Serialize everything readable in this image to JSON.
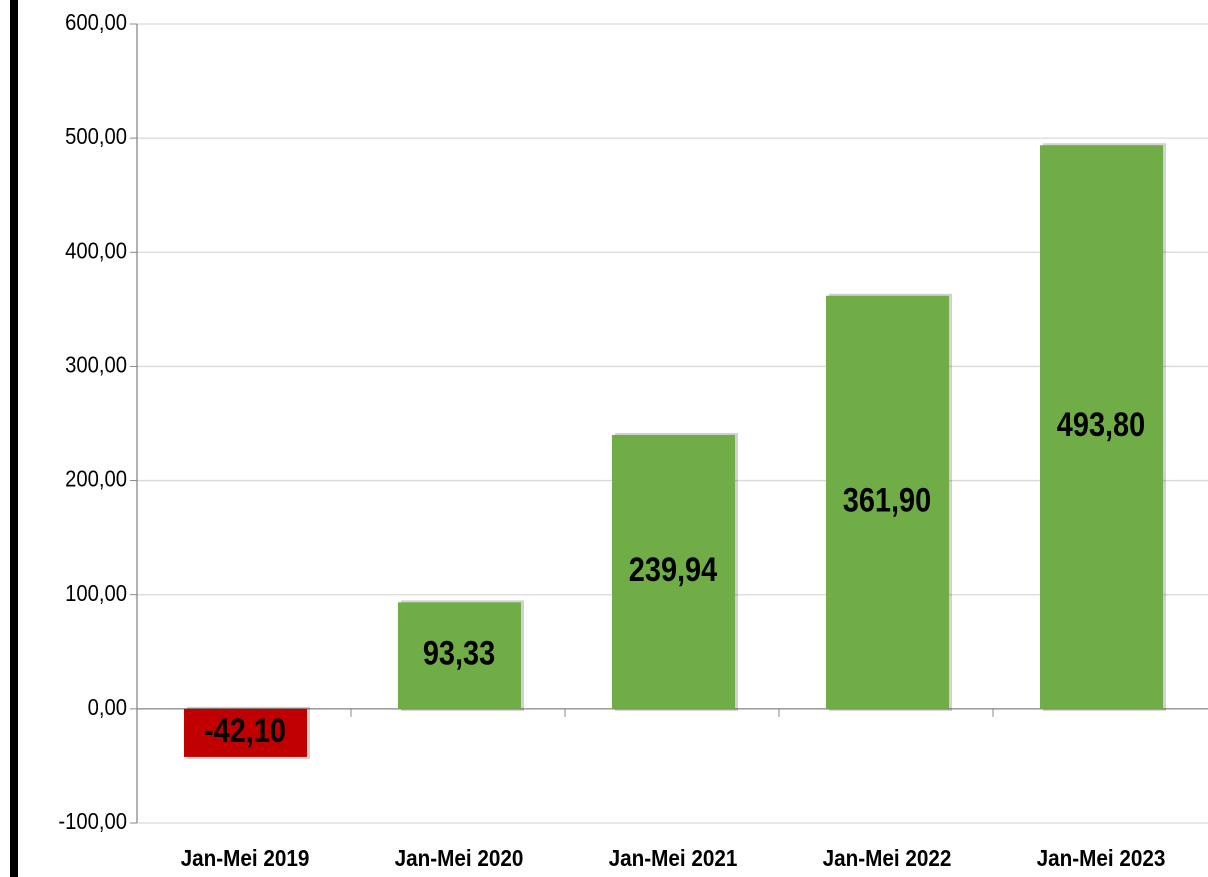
{
  "chart_data": {
    "type": "bar",
    "categories": [
      "Jan-Mei 2019",
      "Jan-Mei 2020",
      "Jan-Mei 2021",
      "Jan-Mei 2022",
      "Jan-Mei 2023"
    ],
    "values": [
      -42.1,
      93.33,
      239.94,
      361.9,
      493.8
    ],
    "value_labels": [
      "-42,10",
      "93,33",
      "239,94",
      "361,90",
      "493,80"
    ],
    "colors": [
      "#c00000",
      "#70ad47",
      "#70ad47",
      "#70ad47",
      "#70ad47"
    ],
    "ylim": [
      -100,
      600
    ],
    "yticks": [
      {
        "value": -100,
        "label": "-100,00"
      },
      {
        "value": 0,
        "label": "0,00"
      },
      {
        "value": 100,
        "label": "100,00"
      },
      {
        "value": 200,
        "label": "200,00"
      },
      {
        "value": 300,
        "label": "300,00"
      },
      {
        "value": 400,
        "label": "400,00"
      },
      {
        "value": 500,
        "label": "500,00"
      },
      {
        "value": 600,
        "label": "600,00"
      }
    ],
    "grid": true
  }
}
